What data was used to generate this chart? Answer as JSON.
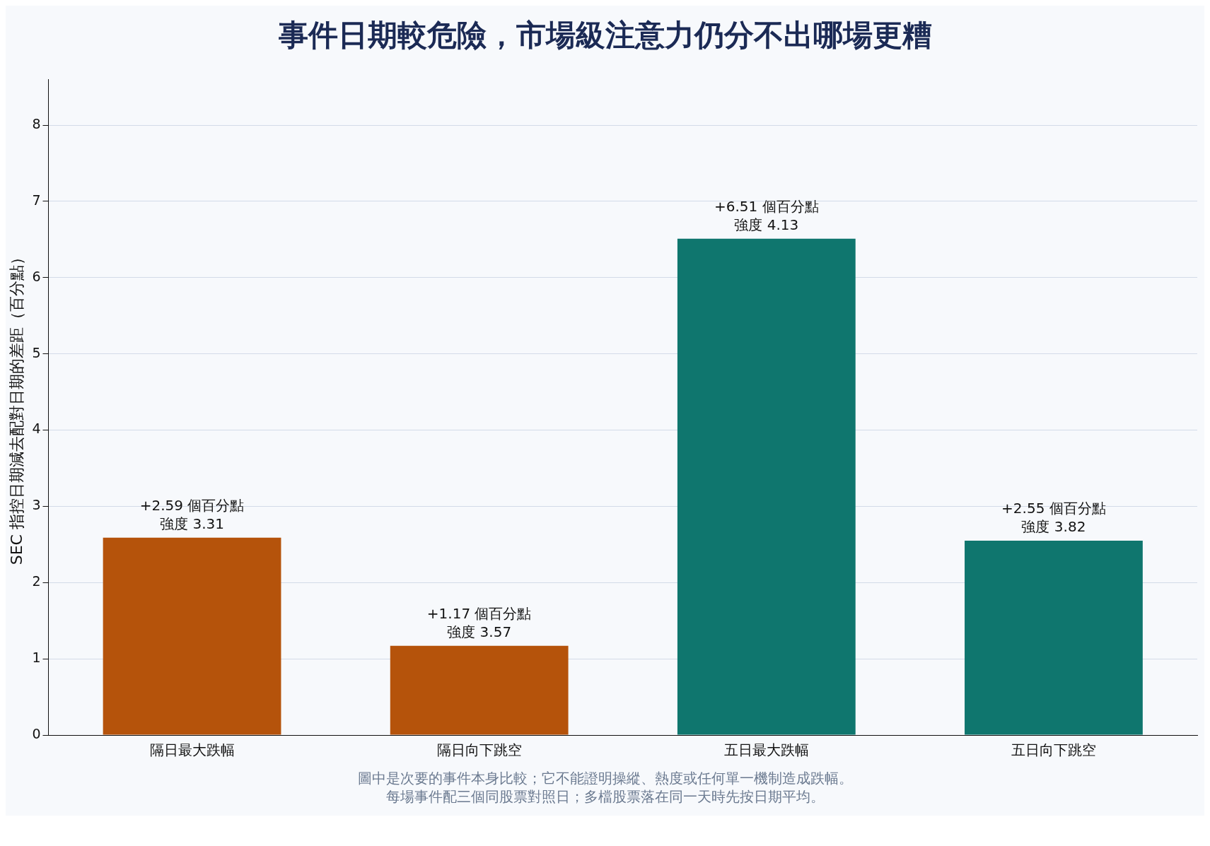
{
  "chart_data": {
    "type": "bar",
    "title": "事件日期較危險，市場級注意力仍分不出哪場更糟",
    "ylabel": "SEC 指控日期減去配對日期的差距（百分點）",
    "categories": [
      "隔日最大跌幅",
      "隔日向下跳空",
      "五日最大跌幅",
      "五日向下跳空"
    ],
    "values": [
      2.59,
      1.17,
      6.51,
      2.55
    ],
    "colors": [
      "#b5530b",
      "#b5530b",
      "#0f766e",
      "#0f766e"
    ],
    "value_labels": [
      "+2.59 個百分點",
      "+1.17 個百分點",
      "+6.51 個百分點",
      "+2.55 個百分點"
    ],
    "ylim": [
      0,
      8.6
    ],
    "yticks": [
      0,
      1,
      2,
      3,
      4,
      5,
      6,
      7,
      8
    ],
    "grid": "y",
    "legend": false,
    "annotations": [
      {
        "text": "強度 3.31",
        "x": "隔日最大跌幅",
        "y": 2.59
      },
      {
        "text": "強度 3.57",
        "x": "隔日向下跳空",
        "y": 1.17
      },
      {
        "text": "強度 4.13",
        "x": "五日最大跌幅",
        "y": 6.51
      },
      {
        "text": "強度 3.82",
        "x": "五日向下跳空",
        "y": 2.55
      },
      "圖中是次要的事件本身比較；它不能證明操縱、熱度或任何單一機制造成跌幅。",
      "每場事件配三個同股票對照日；多檔股票落在同一天時先按日期平均。"
    ]
  }
}
